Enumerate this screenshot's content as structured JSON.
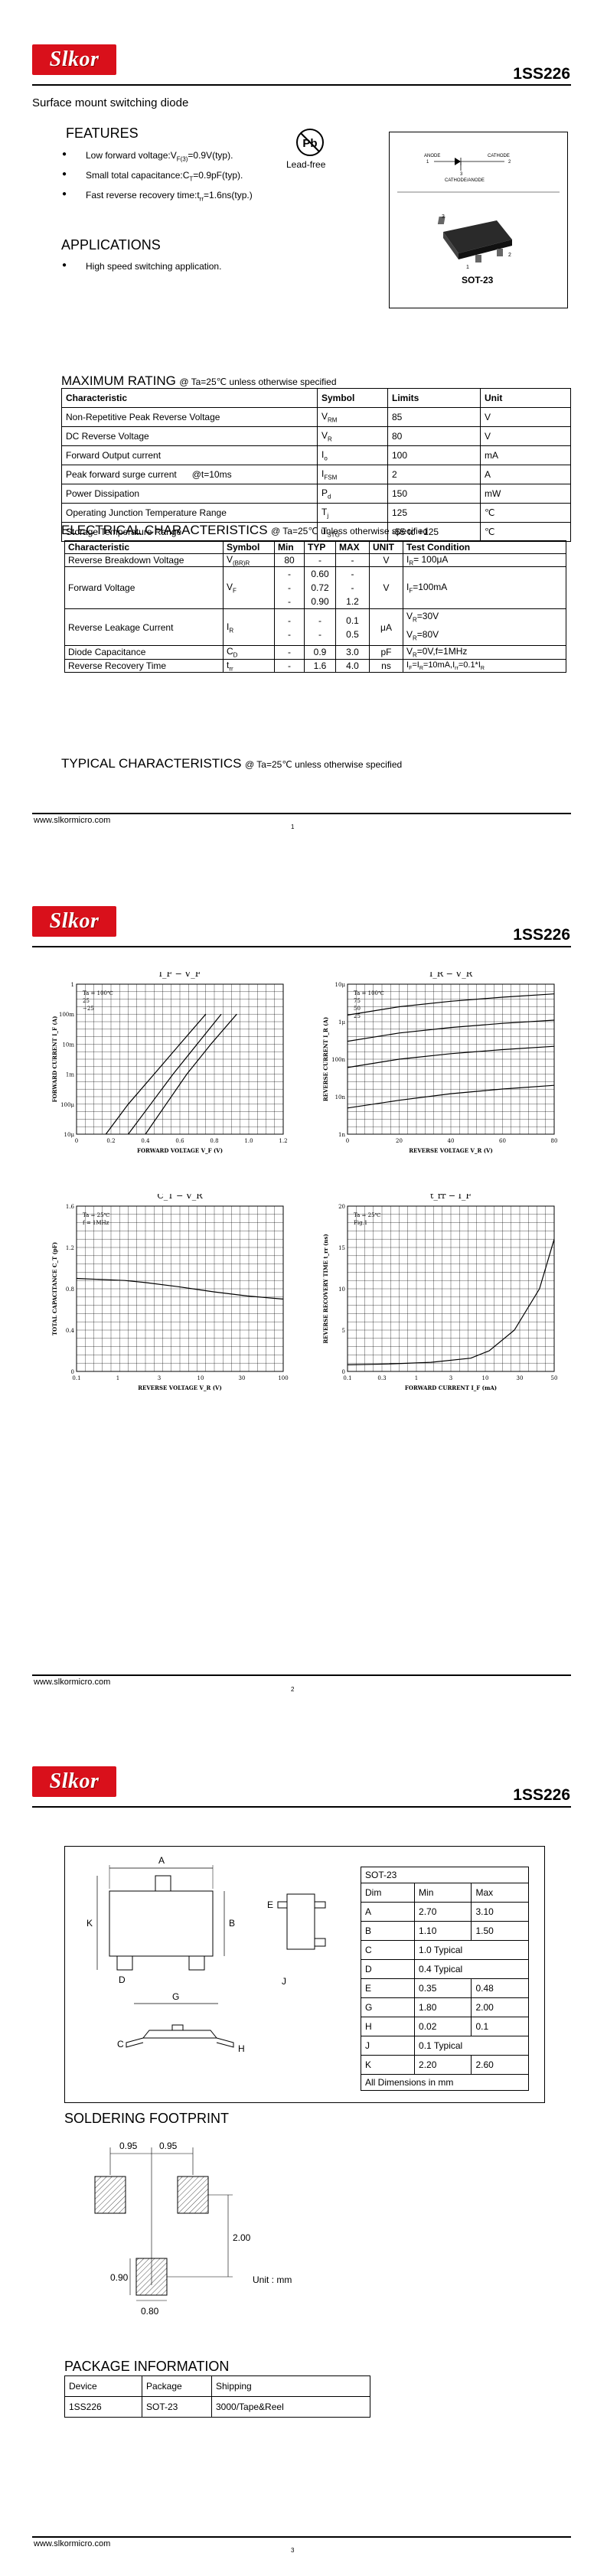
{
  "header": {
    "brand": "Slkor",
    "part_number": "1SS226"
  },
  "page1": {
    "subtitle": "Surface mount switching diode",
    "features_title": "FEATURES",
    "features": [
      "Low forward voltage:V_F(3)=0.9V(typ).",
      "Small total capacitance:C_T=0.9pF(typ).",
      "Fast reverse recovery time:t_rr=1.6ns(typ.)"
    ],
    "leadfree_symbol": "Pb",
    "leadfree_label": "Lead-free",
    "pinout": {
      "anode": "ANODE",
      "anode_pin": "1",
      "cathode": "CATHODE",
      "cathode_pin": "2",
      "cathode_anode": "CATHODE/ANODE",
      "cathode_anode_pin": "3"
    },
    "package_label": "SOT-23",
    "package_pins": [
      "3",
      "1",
      "2"
    ],
    "applications_title": "APPLICATIONS",
    "applications": [
      "High speed switching application."
    ],
    "max_rating_title": "MAXIMUM RATING",
    "max_rating_cond": "@ Ta=25℃ unless otherwise specified",
    "max_rating_headers": [
      "Characteristic",
      "Symbol",
      "Limits",
      "Unit"
    ],
    "max_rating_rows": [
      [
        "Non-Repetitive Peak Reverse Voltage",
        "V_RM",
        "85",
        "V"
      ],
      [
        "DC Reverse Voltage",
        "V_R",
        "80",
        "V"
      ],
      [
        "Forward Output current",
        "I_o",
        "100",
        "mA"
      ],
      [
        "Peak forward surge current      @t=10ms",
        "I_FSM",
        "2",
        "A"
      ],
      [
        "Power Dissipation",
        "P_d",
        "150",
        "mW"
      ],
      [
        "Operating Junction Temperature Range",
        "T_j",
        "125",
        "℃"
      ],
      [
        "Storage Temperature Range",
        "T_STG",
        "-55 to +125",
        "℃"
      ]
    ],
    "elec_title": "ELECTRICAL CHARACTERISTICS",
    "elec_cond": "@ Ta=25℃ unless otherwise specified",
    "elec_headers": [
      "Characteristic",
      "Symbol",
      "Min",
      "TYP",
      "MAX",
      "UNIT",
      "Test Condition"
    ],
    "elec_rows": [
      {
        "char": "Reverse Breakdown Voltage",
        "sym": "V(BR)R",
        "min": [
          "80"
        ],
        "typ": [
          "-"
        ],
        "max": [
          "-"
        ],
        "unit": "V",
        "cond": [
          "I_R= 100μA"
        ]
      },
      {
        "char": "Forward Voltage",
        "sym": "V_F",
        "min": [
          "-",
          "-",
          "-"
        ],
        "typ": [
          "0.60",
          "0.72",
          "0.90"
        ],
        "max": [
          "-",
          "-",
          "1.2"
        ],
        "unit": "V",
        "cond": [
          "I_F=100mA"
        ]
      },
      {
        "char": "Reverse Leakage Current",
        "sym": "I_R",
        "min": [
          "-",
          "-"
        ],
        "typ": [
          "-",
          "-"
        ],
        "max": [
          "0.1",
          "0.5"
        ],
        "unit": "μA",
        "cond": [
          "V_R=30V",
          "V_R=80V"
        ]
      },
      {
        "char": "Diode Capacitance",
        "sym": "C_D",
        "min": [
          "-"
        ],
        "typ": [
          "0.9"
        ],
        "max": [
          "3.0"
        ],
        "unit": "pF",
        "cond": [
          "V_R=0V,f=1MHz"
        ]
      },
      {
        "char": "Reverse Recovery Time",
        "sym": "t_rr",
        "min": [
          "-"
        ],
        "typ": [
          "1.6"
        ],
        "max": [
          "4.0"
        ],
        "unit": "ns",
        "cond": [
          "I_F=I_R=10mA,I_rr=0.1*I_R"
        ]
      }
    ],
    "typical_title": "TYPICAL CHARACTERISTICS",
    "typical_cond": "@ Ta=25℃ unless otherwise specified"
  },
  "footer": {
    "url": "www.slkormicro.com",
    "pages": [
      "1",
      "2",
      "3"
    ]
  },
  "chart_data": [
    {
      "type": "line",
      "title": "I_F − V_F",
      "xlabel": "FORWARD VOLTAGE  V_F  (V)",
      "ylabel": "FORWARD CURRENT  I_F  (A)",
      "xlim": [
        0,
        1.2
      ],
      "x_ticks": [
        "0",
        "0.2",
        "0.4",
        "0.6",
        "0.8",
        "1.0",
        "1.2"
      ],
      "y_scale": "log",
      "y_ticks": [
        "10μ",
        "100μ",
        "1m",
        "10m",
        "100m",
        "1"
      ],
      "annotations": [
        "Ta = 100℃",
        "25",
        "−25"
      ],
      "series": [
        {
          "name": "Ta = 100℃",
          "x": [
            0.17,
            0.3,
            0.45,
            0.6,
            0.75
          ],
          "y": [
            1e-05,
            0.0001,
            0.001,
            0.01,
            0.1
          ]
        },
        {
          "name": "25",
          "x": [
            0.3,
            0.43,
            0.56,
            0.7,
            0.84
          ],
          "y": [
            1e-05,
            0.0001,
            0.001,
            0.01,
            0.1
          ]
        },
        {
          "name": "−25",
          "x": [
            0.4,
            0.52,
            0.64,
            0.78,
            0.93
          ],
          "y": [
            1e-05,
            0.0001,
            0.001,
            0.01,
            0.1
          ]
        }
      ]
    },
    {
      "type": "line",
      "title": "I_R − V_R",
      "xlabel": "REVERSE VOLTAGE  V_R  (V)",
      "ylabel": "REVERSE CURRENT  I_R  (A)",
      "xlim": [
        0,
        80
      ],
      "x_ticks": [
        "0",
        "20",
        "40",
        "60",
        "80"
      ],
      "y_scale": "log",
      "y_ticks": [
        "1n",
        "10n",
        "100n",
        "1μ",
        "10μ"
      ],
      "annotations": [
        "Ta = 100℃",
        "75",
        "50",
        "25"
      ],
      "series": [
        {
          "name": "Ta = 100℃",
          "x": [
            0,
            20,
            40,
            60,
            80
          ],
          "y": [
            1.5e-06,
            2.5e-06,
            3.5e-06,
            4.5e-06,
            5.5e-06
          ]
        },
        {
          "name": "75",
          "x": [
            0,
            20,
            40,
            60,
            80
          ],
          "y": [
            3e-07,
            5e-07,
            7e-07,
            9e-07,
            1.1e-06
          ]
        },
        {
          "name": "50",
          "x": [
            0,
            20,
            40,
            60,
            80
          ],
          "y": [
            6e-08,
            1e-07,
            1.4e-07,
            1.8e-07,
            2.2e-07
          ]
        },
        {
          "name": "25",
          "x": [
            0,
            20,
            40,
            60,
            80
          ],
          "y": [
            5e-09,
            8e-09,
            1.2e-08,
            1.6e-08,
            2e-08
          ]
        }
      ]
    },
    {
      "type": "line",
      "title": "C_T − V_R",
      "xlabel": "REVERSE VOLTAGE  V_R  (V)",
      "ylabel": "TOTAL CAPACITANCE  C_T  (pF)",
      "x_scale": "log",
      "xlim": [
        0.1,
        100
      ],
      "x_ticks": [
        "0.1",
        "1",
        "3",
        "10",
        "30",
        "100"
      ],
      "ylim": [
        0,
        1.6
      ],
      "y_ticks": [
        "0",
        "0.4",
        "0.8",
        "1.2",
        "1.6"
      ],
      "annotations": [
        "Ta = 25℃",
        "f = 1MHz"
      ],
      "series": [
        {
          "name": "",
          "x": [
            0.1,
            0.5,
            1,
            3,
            10,
            30,
            100
          ],
          "y": [
            0.9,
            0.88,
            0.86,
            0.82,
            0.77,
            0.73,
            0.7
          ]
        }
      ]
    },
    {
      "type": "line",
      "title": "t_rr − I_F",
      "xlabel": "FORWARD CURRENT  I_F  (mA)",
      "ylabel": "REVERSE RECOVERY TIME  t_rr  (ns)",
      "x_scale": "log",
      "xlim": [
        0.1,
        30
      ],
      "x_ticks": [
        "0.1",
        "0.3",
        "1",
        "3",
        "10",
        "30",
        "50"
      ],
      "ylim": [
        0,
        20
      ],
      "y_ticks": [
        "0",
        "5",
        "10",
        "15",
        "20"
      ],
      "annotations": [
        "Ta = 25℃",
        "Fig.1"
      ],
      "series": [
        {
          "name": "",
          "x": [
            0.1,
            0.3,
            1,
            3,
            5,
            10,
            20,
            30
          ],
          "y": [
            0.8,
            0.9,
            1.1,
            1.6,
            2.5,
            5,
            10,
            16
          ]
        }
      ]
    }
  ],
  "page3": {
    "dimension_letters": {
      "A": "A",
      "B": "B",
      "C": "C",
      "D": "D",
      "E": "E",
      "G": "G",
      "H": "H",
      "J": "J",
      "K": "K"
    },
    "dim_table_title": "SOT-23",
    "dim_headers": [
      "Dim",
      "Min",
      "Max"
    ],
    "dim_rows": [
      [
        "A",
        "2.70",
        "3.10"
      ],
      [
        "B",
        "1.10",
        "1.50"
      ],
      [
        "C",
        "1.0 Typical",
        ""
      ],
      [
        "D",
        "0.4 Typical",
        ""
      ],
      [
        "E",
        "0.35",
        "0.48"
      ],
      [
        "G",
        "1.80",
        "2.00"
      ],
      [
        "H",
        "0.02",
        "0.1"
      ],
      [
        "J",
        "0.1 Typical",
        ""
      ],
      [
        "K",
        "2.20",
        "2.60"
      ]
    ],
    "dim_footer": "All Dimensions in mm",
    "soldering_title": "SOLDERING FOOTPRINT",
    "footprint_labels": {
      "d1": "0.95",
      "d2": "0.95",
      "height": "2.00",
      "pad_w": "0.90",
      "pad_h": "0.80",
      "unit": "Unit : mm"
    },
    "package_info_title": "PACKAGE INFORMATION",
    "package_headers": [
      "Device",
      "Package",
      "Shipping"
    ],
    "package_rows": [
      [
        "1SS226",
        "SOT-23",
        "3000/Tape&Reel"
      ]
    ]
  }
}
